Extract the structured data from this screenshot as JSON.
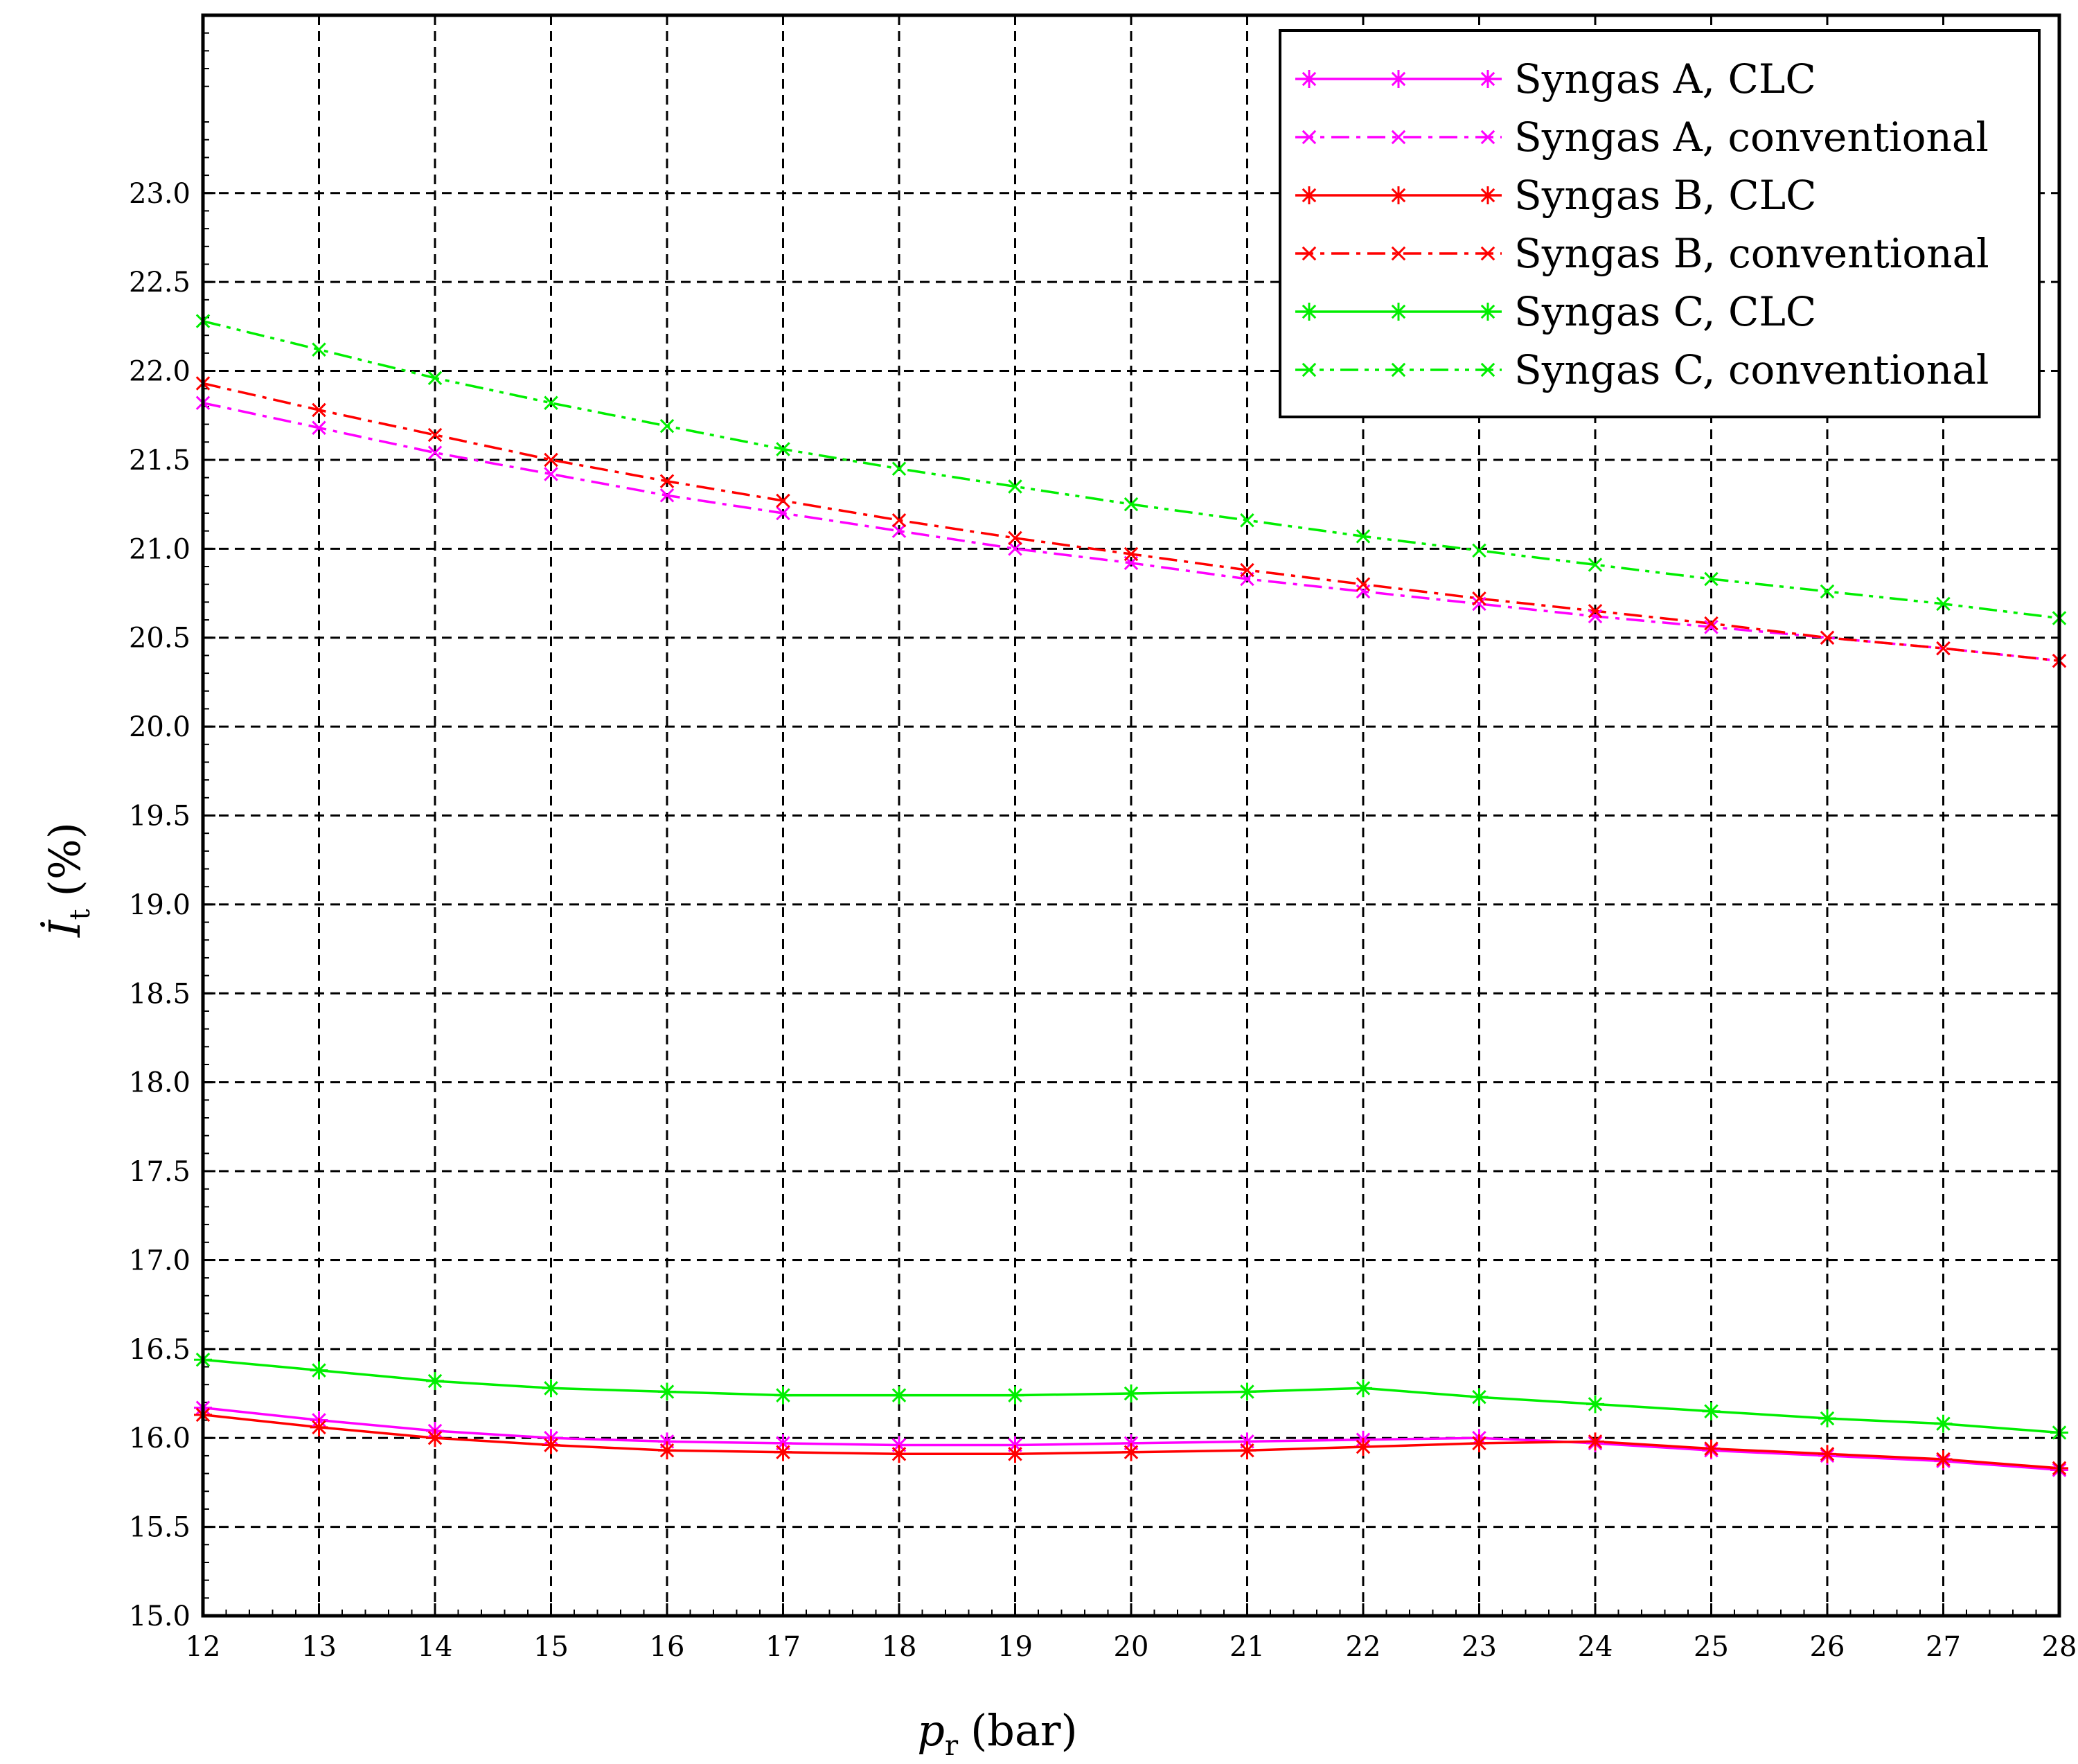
{
  "chart_data": {
    "type": "line",
    "title": "",
    "xlabel": {
      "symbol": "p",
      "subscript": "r",
      "unit": "(bar)"
    },
    "ylabel": {
      "symbol": "İ",
      "subscript": "t",
      "unit": "(%)"
    },
    "xlim": [
      12,
      28
    ],
    "ylim": [
      15.0,
      24.0
    ],
    "xticks": [
      12,
      13,
      14,
      15,
      16,
      17,
      18,
      19,
      20,
      21,
      22,
      23,
      24,
      25,
      26,
      27,
      28
    ],
    "yticks": [
      "15.0",
      "15.5",
      "16.0",
      "16.5",
      "17.0",
      "17.5",
      "18.0",
      "18.5",
      "19.0",
      "19.5",
      "20.0",
      "20.5",
      "21.0",
      "21.5",
      "22.0",
      "22.5",
      "23.0"
    ],
    "grid": true,
    "legend_position": "top-right",
    "x": [
      12,
      13,
      14,
      15,
      16,
      17,
      18,
      19,
      20,
      21,
      22,
      23,
      24,
      25,
      26,
      27,
      28
    ],
    "series": [
      {
        "name": "Syngas A, CLC",
        "color": "#ff00ff",
        "dash": "solid",
        "marker": "star",
        "values": [
          16.17,
          16.1,
          16.04,
          16.0,
          15.98,
          15.97,
          15.96,
          15.96,
          15.97,
          15.98,
          15.99,
          16.0,
          15.97,
          15.93,
          15.9,
          15.87,
          15.82
        ]
      },
      {
        "name": "Syngas A, conventional",
        "color": "#ff00ff",
        "dash": "dashdot",
        "marker": "x",
        "values": [
          21.82,
          21.68,
          21.54,
          21.42,
          21.3,
          21.2,
          21.1,
          21.0,
          20.92,
          20.83,
          20.76,
          20.69,
          20.62,
          20.56,
          20.5,
          20.44,
          20.37
        ]
      },
      {
        "name": "Syngas B, CLC",
        "color": "#ff0000",
        "dash": "solid",
        "marker": "star",
        "values": [
          16.13,
          16.06,
          16.0,
          15.96,
          15.93,
          15.92,
          15.91,
          15.91,
          15.92,
          15.93,
          15.95,
          15.97,
          15.98,
          15.94,
          15.91,
          15.88,
          15.83
        ]
      },
      {
        "name": "Syngas B, conventional",
        "color": "#ff0000",
        "dash": "dashdot",
        "marker": "x",
        "values": [
          21.93,
          21.78,
          21.64,
          21.5,
          21.38,
          21.27,
          21.16,
          21.06,
          20.97,
          20.88,
          20.8,
          20.72,
          20.65,
          20.58,
          20.5,
          20.44,
          20.37
        ]
      },
      {
        "name": "Syngas C, CLC",
        "color": "#00ee00",
        "dash": "solid",
        "marker": "star",
        "values": [
          16.44,
          16.38,
          16.32,
          16.28,
          16.26,
          16.24,
          16.24,
          16.24,
          16.25,
          16.26,
          16.28,
          16.23,
          16.19,
          16.15,
          16.11,
          16.08,
          16.03
        ]
      },
      {
        "name": "Syngas C, conventional",
        "color": "#00ee00",
        "dash": "dashdotdot",
        "marker": "x",
        "values": [
          22.28,
          22.12,
          21.96,
          21.82,
          21.69,
          21.56,
          21.45,
          21.35,
          21.25,
          21.16,
          21.07,
          20.99,
          20.91,
          20.83,
          20.76,
          20.69,
          20.61
        ]
      }
    ]
  }
}
